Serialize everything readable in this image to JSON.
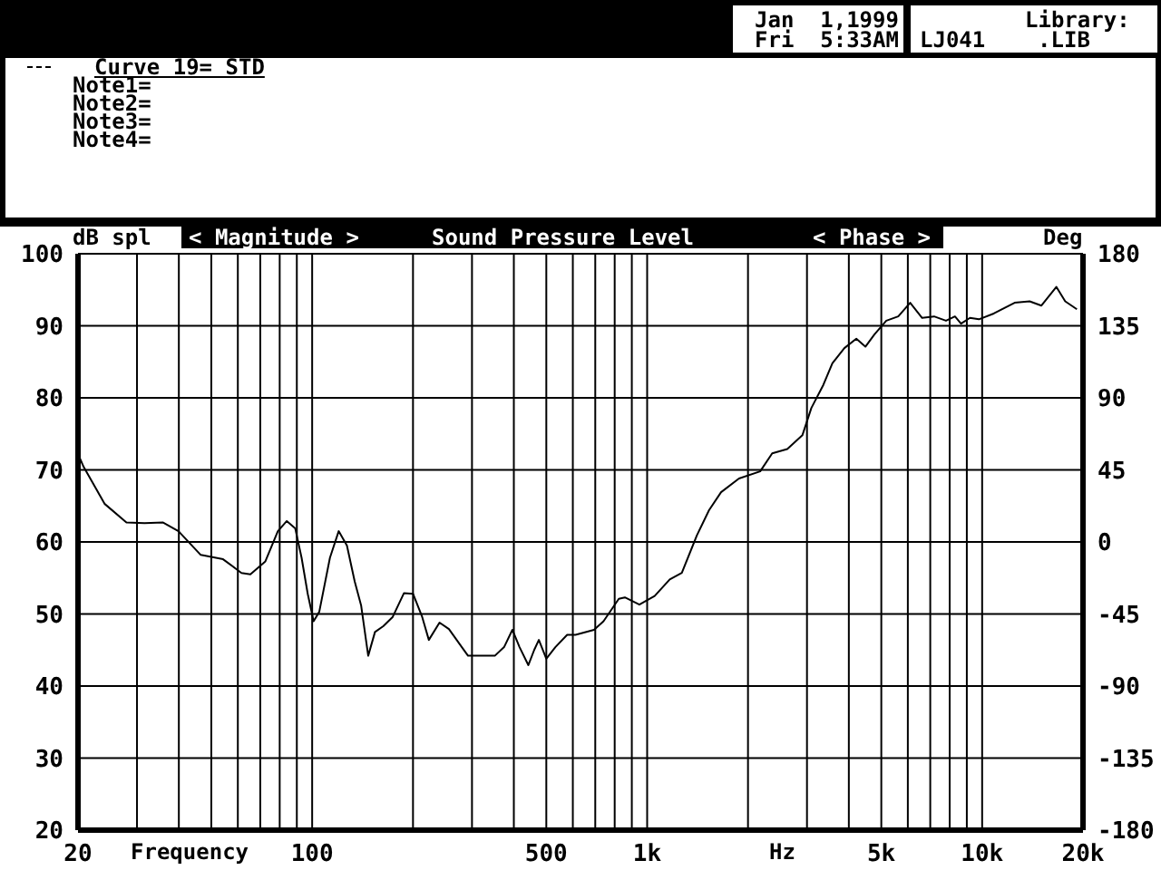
{
  "chart_data": {
    "type": "line",
    "title": "Sound Pressure Level",
    "xlabel": "Frequency",
    "ylabel": "dB spl",
    "y2label": "Deg",
    "annotations": [
      "< Magnitude >",
      "< Phase >",
      "Hz",
      "Jan  1,1999",
      "Fri  5:33AM",
      "Library:",
      "LJ041    .LIB",
      "Note1=",
      "Note2=",
      "Note3=",
      "Note4="
    ],
    "log": "x",
    "xlim": [
      20,
      20000
    ],
    "xticks": [
      20,
      {
        "value": 30,
        "label": null
      },
      {
        "value": 40,
        "label": null
      },
      {
        "value": 50,
        "label": null
      },
      {
        "value": 60,
        "label": null
      },
      {
        "value": 70,
        "label": null
      },
      {
        "value": 80,
        "label": null
      },
      {
        "value": 90,
        "label": null
      },
      100,
      {
        "value": 200,
        "label": null
      },
      {
        "value": 300,
        "label": null
      },
      {
        "value": 400,
        "label": null
      },
      500,
      {
        "value": 600,
        "label": null
      },
      {
        "value": 700,
        "label": null
      },
      {
        "value": 800,
        "label": null
      },
      {
        "value": 900,
        "label": null
      },
      {
        "value": 1000,
        "label": "1k"
      },
      {
        "value": 2000,
        "label": null
      },
      {
        "value": 3000,
        "label": null
      },
      {
        "value": 4000,
        "label": null
      },
      {
        "value": 5000,
        "label": "5k"
      },
      {
        "value": 6000,
        "label": null
      },
      {
        "value": 7000,
        "label": null
      },
      {
        "value": 8000,
        "label": null
      },
      {
        "value": 9000,
        "label": null
      },
      {
        "value": 10000,
        "label": "10k"
      },
      {
        "value": 20000,
        "label": "20k"
      }
    ],
    "ylim": [
      20,
      100
    ],
    "yticks": [
      20,
      30,
      40,
      50,
      60,
      70,
      80,
      90,
      100
    ],
    "y2lim": [
      -180,
      180
    ],
    "y2ticks": [
      -180,
      -135,
      -90,
      -45,
      0,
      45,
      90,
      135,
      180
    ],
    "grid": true,
    "legend": "top left",
    "marker": "none",
    "line_style": "solid",
    "series": [
      {
        "name": "Curve 19= STD",
        "color": "#000000",
        "x": [
          20,
          20.8,
          24,
          27.9,
          31.6,
          35.9,
          39.9,
          46.5,
          54.2,
          61.5,
          65.4,
          72.5,
          79,
          84,
          89,
          93,
          97,
          101,
          105,
          113,
          120,
          127,
          134,
          140,
          147,
          154,
          163,
          174,
          188,
          200,
          213,
          223,
          240,
          256,
          292,
          351,
          374,
          396,
          416,
          442,
          460,
          475,
          500,
          532,
          577,
          611,
          694,
          741,
          823,
          858,
          948,
          1053,
          1168,
          1269,
          1407,
          1530,
          1662,
          1880,
          2175,
          2362,
          2620,
          2906,
          3092,
          3357,
          3572,
          3879,
          4211,
          4482,
          4767,
          5175,
          5618,
          6097,
          6620,
          7184,
          7800,
          8296,
          8648,
          9195,
          9780,
          10830,
          12500,
          13860,
          15030,
          16650,
          17700,
          19180
        ],
        "values": [
          72.2,
          70.4,
          65.3,
          62.7,
          62.6,
          62.7,
          61.5,
          58.2,
          57.6,
          55.7,
          55.5,
          57.3,
          61.5,
          62.9,
          61.9,
          57.8,
          52.8,
          49,
          50.3,
          57.8,
          61.5,
          59.5,
          54.5,
          51.2,
          44.2,
          47.5,
          48.3,
          49.6,
          52.9,
          52.8,
          49.6,
          46.4,
          48.8,
          47.9,
          44.2,
          44.2,
          45.4,
          47.8,
          45.4,
          42.9,
          45,
          46.4,
          43.8,
          45.4,
          47.1,
          47.1,
          47.8,
          49,
          52.1,
          52.3,
          51.3,
          52.5,
          54.8,
          55.7,
          60.9,
          64.4,
          66.9,
          68.8,
          69.8,
          72.3,
          72.9,
          74.8,
          78.6,
          81.8,
          84.8,
          86.9,
          88.2,
          87.1,
          88.8,
          90.7,
          91.3,
          93.2,
          91.1,
          91.3,
          90.7,
          91.3,
          90.3,
          91.1,
          90.9,
          91.7,
          93.2,
          93.4,
          92.8,
          95.4,
          93.4,
          92.3
        ]
      }
    ]
  }
}
